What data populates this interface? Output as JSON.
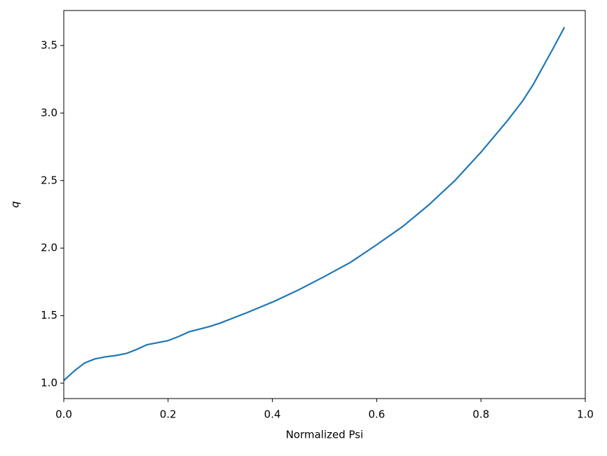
{
  "chart_data": {
    "type": "line",
    "x_label": "Normalized Psi",
    "y_label": "q",
    "color": "#1f77b4",
    "x": [
      0.0,
      0.02,
      0.04,
      0.06,
      0.08,
      0.1,
      0.12,
      0.14,
      0.16,
      0.18,
      0.2,
      0.22,
      0.24,
      0.26,
      0.28,
      0.3,
      0.35,
      0.4,
      0.45,
      0.5,
      0.55,
      0.6,
      0.65,
      0.7,
      0.75,
      0.8,
      0.85,
      0.88,
      0.9,
      0.92,
      0.94,
      0.96
    ],
    "values": [
      1.02,
      1.09,
      1.15,
      1.18,
      1.195,
      1.205,
      1.22,
      1.25,
      1.285,
      1.3,
      1.315,
      1.345,
      1.38,
      1.4,
      1.42,
      1.445,
      1.52,
      1.6,
      1.69,
      1.79,
      1.895,
      2.025,
      2.16,
      2.32,
      2.5,
      2.71,
      2.94,
      3.09,
      3.21,
      3.35,
      3.49,
      3.635
    ],
    "xlim": [
      0,
      1
    ],
    "ylim": [
      0.886,
      3.759
    ],
    "xticks": [
      {
        "value": 0,
        "label": "0.0"
      },
      0.2,
      0.4,
      0.6,
      0.8,
      {
        "value": 1,
        "label": "1.0"
      }
    ],
    "yticks": [
      {
        "value": 1,
        "label": "1.0"
      },
      1.5,
      {
        "value": 2,
        "label": "2.0"
      },
      2.5,
      {
        "value": 3,
        "label": "3.0"
      },
      3.5
    ]
  }
}
